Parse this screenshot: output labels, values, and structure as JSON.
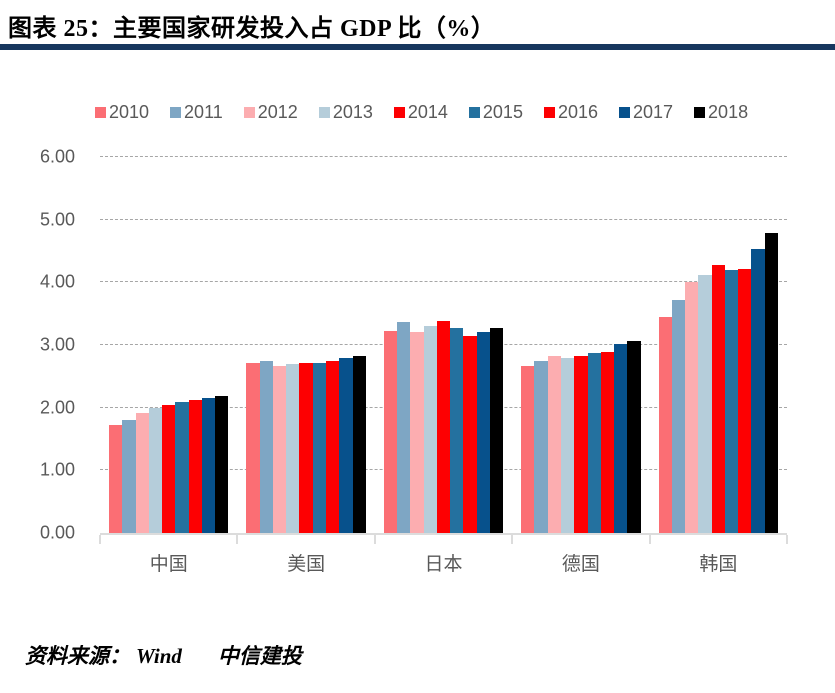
{
  "header": {
    "title": "图表 25：主要国家研发投入占 GDP 比（%）"
  },
  "footer": {
    "source_label": "资料来源：",
    "sources": [
      "Wind",
      "中信建投"
    ]
  },
  "colors": {
    "title_rule": "#17375e",
    "axis_text": "#595959",
    "grid_line": "#a6a6a6",
    "axis_line": "#dcdcdc"
  },
  "chart_data": {
    "type": "bar",
    "title": "主要国家研发投入占 GDP 比（%）",
    "categories": [
      "中国",
      "美国",
      "日本",
      "德国",
      "韩国"
    ],
    "series": [
      {
        "name": "2010",
        "color": "#fb6e74",
        "values": [
          1.72,
          2.72,
          3.22,
          2.67,
          3.45
        ]
      },
      {
        "name": "2011",
        "color": "#7ea6c4",
        "values": [
          1.8,
          2.74,
          3.36,
          2.75,
          3.72
        ]
      },
      {
        "name": "2012",
        "color": "#fcadb0",
        "values": [
          1.92,
          2.66,
          3.21,
          2.83,
          4.0
        ]
      },
      {
        "name": "2013",
        "color": "#b5cdda",
        "values": [
          1.99,
          2.7,
          3.3,
          2.79,
          4.12
        ]
      },
      {
        "name": "2014",
        "color": "#fd0002",
        "values": [
          2.04,
          2.72,
          3.39,
          2.83,
          4.28
        ]
      },
      {
        "name": "2015",
        "color": "#24719f",
        "values": [
          2.09,
          2.71,
          3.27,
          2.87,
          4.2
        ]
      },
      {
        "name": "2016",
        "color": "#fd0002",
        "values": [
          2.13,
          2.74,
          3.15,
          2.89,
          4.21
        ]
      },
      {
        "name": "2017",
        "color": "#07518c",
        "values": [
          2.16,
          2.79,
          3.21,
          3.01,
          4.54
        ]
      },
      {
        "name": "2018",
        "color": "#000000",
        "values": [
          2.19,
          2.82,
          3.27,
          3.07,
          4.79
        ]
      }
    ],
    "ylim": [
      0,
      6
    ],
    "ytick_step": 1.0,
    "ytick_labels": [
      "0.00",
      "1.00",
      "2.00",
      "3.00",
      "4.00",
      "5.00",
      "6.00"
    ],
    "grid": "horizontal-dashed",
    "legend_position": "top"
  }
}
